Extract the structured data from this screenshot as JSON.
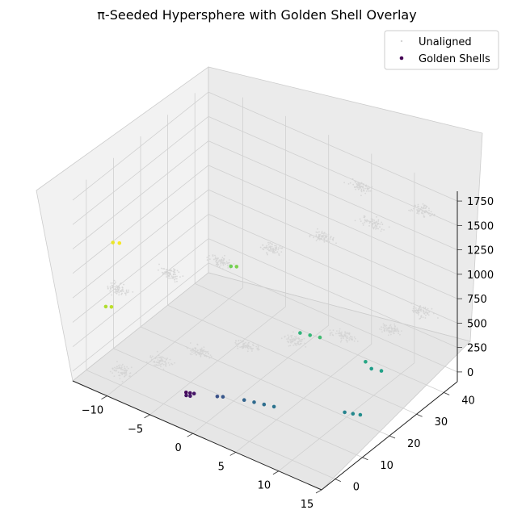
{
  "chart_data": {
    "type": "scatter",
    "projection": "3d",
    "title": "π-Seeded Hypersphere with Golden Shell Overlay",
    "xlabel": "",
    "ylabel": "",
    "zlabel": "",
    "xlim": [
      -14,
      15
    ],
    "ylim": [
      -5,
      45
    ],
    "zlim": [
      -100,
      1850
    ],
    "x_ticks": [
      "−10",
      "−5",
      "0",
      "5",
      "10",
      "15"
    ],
    "y_ticks": [
      "0",
      "10",
      "20",
      "30",
      "40"
    ],
    "z_ticks": [
      "0",
      "250",
      "500",
      "750",
      "1000",
      "1250",
      "1500",
      "1750"
    ],
    "grid": true,
    "legend_position": "top-right",
    "legend": [
      "Unaligned",
      "Golden Shells"
    ],
    "series": [
      {
        "name": "Unaligned",
        "color": "#d3d3d3",
        "clusters": [
          {
            "x": -10,
            "y": 0,
            "z": 50
          },
          {
            "x": -7,
            "y": 5,
            "z": 150
          },
          {
            "x": -4,
            "y": 10,
            "z": 250
          },
          {
            "x": 0,
            "y": 15,
            "z": 350
          },
          {
            "x": 4,
            "y": 20,
            "z": 450
          },
          {
            "x": 8,
            "y": 25,
            "z": 550
          },
          {
            "x": 12,
            "y": 30,
            "z": 650
          },
          {
            "x": 14,
            "y": 35,
            "z": 800
          },
          {
            "x": -12,
            "y": 5,
            "z": 700
          },
          {
            "x": -8,
            "y": 12,
            "z": 850
          },
          {
            "x": -4,
            "y": 18,
            "z": 1000
          },
          {
            "x": 0,
            "y": 24,
            "z": 1150
          },
          {
            "x": 4,
            "y": 30,
            "z": 1300
          },
          {
            "x": 8,
            "y": 36,
            "z": 1450
          },
          {
            "x": 12,
            "y": 42,
            "z": 1600
          },
          {
            "x": 6,
            "y": 38,
            "z": 1700
          }
        ]
      },
      {
        "name": "Golden Shells",
        "colormap": "viridis",
        "points": [
          {
            "x": -3,
            "y": 2,
            "z": 50,
            "c": 0.02
          },
          {
            "x": -2.6,
            "y": 2.2,
            "z": 55,
            "c": 0.04
          },
          {
            "x": -2.2,
            "y": 2.4,
            "z": 60,
            "c": 0.06
          },
          {
            "x": -2.8,
            "y": 1.4,
            "z": 40,
            "c": 0.05
          },
          {
            "x": -2.4,
            "y": 1.6,
            "z": 45,
            "c": 0.07
          },
          {
            "x": 0,
            "y": 4,
            "z": 80,
            "c": 0.25
          },
          {
            "x": 0.5,
            "y": 4.5,
            "z": 85,
            "c": 0.27
          },
          {
            "x": 2.5,
            "y": 6,
            "z": 95,
            "c": 0.32
          },
          {
            "x": 3.5,
            "y": 6.5,
            "z": 100,
            "c": 0.34
          },
          {
            "x": 4.5,
            "y": 7,
            "z": 105,
            "c": 0.36
          },
          {
            "x": 5.5,
            "y": 7.5,
            "z": 110,
            "c": 0.38
          },
          {
            "x": 12,
            "y": 13,
            "z": 180,
            "c": 0.45
          },
          {
            "x": 12.8,
            "y": 13.5,
            "z": 185,
            "c": 0.47
          },
          {
            "x": 13.5,
            "y": 14,
            "z": 190,
            "c": 0.49
          },
          {
            "x": 11,
            "y": 26,
            "z": 300,
            "c": 0.55
          },
          {
            "x": 12,
            "y": 26.5,
            "z": 305,
            "c": 0.57
          },
          {
            "x": 10,
            "y": 27,
            "z": 310,
            "c": 0.59
          },
          {
            "x": 3,
            "y": 25,
            "z": 380,
            "c": 0.65
          },
          {
            "x": 4,
            "y": 25.5,
            "z": 385,
            "c": 0.67
          },
          {
            "x": 5,
            "y": 26,
            "z": 390,
            "c": 0.69
          },
          {
            "x": -6,
            "y": 28,
            "z": 650,
            "c": 0.78
          },
          {
            "x": -5.5,
            "y": 28.5,
            "z": 655,
            "c": 0.8
          },
          {
            "x": -13,
            "y": 4,
            "z": 500,
            "c": 0.88
          },
          {
            "x": -12.5,
            "y": 4.5,
            "z": 505,
            "c": 0.9
          },
          {
            "x": -12.8,
            "y": 6,
            "z": 1120,
            "c": 0.97
          },
          {
            "x": -12.2,
            "y": 6.5,
            "z": 1125,
            "c": 0.99
          }
        ]
      }
    ]
  }
}
